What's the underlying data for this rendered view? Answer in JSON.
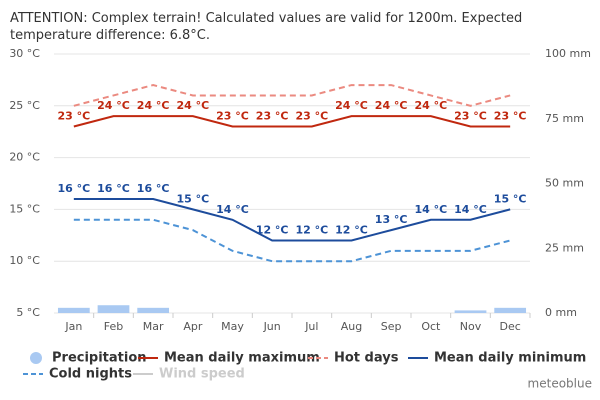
{
  "chart_data": {
    "type": "combo",
    "title": "ATTENTION: Complex terrain! Calculated values are valid for 1200m. Expected temperature difference: 6.8°C.",
    "credit": "meteoblue",
    "categories": [
      "Jan",
      "Feb",
      "Mar",
      "Apr",
      "May",
      "Jun",
      "Jul",
      "Aug",
      "Sep",
      "Oct",
      "Nov",
      "Dec"
    ],
    "ylim": [
      5,
      30
    ],
    "yticks": [
      {
        "value": 5,
        "label": "5 °C"
      },
      {
        "value": 10,
        "label": "10 °C"
      },
      {
        "value": 15,
        "label": "15 °C"
      },
      {
        "value": 20,
        "label": "20 °C"
      },
      {
        "value": 25,
        "label": "25 °C"
      },
      {
        "value": 30,
        "label": "30 °C"
      }
    ],
    "y2lim": [
      0,
      100
    ],
    "y2ticks": [
      {
        "value": 0,
        "label": "0 mm"
      },
      {
        "value": 25,
        "label": "25 mm"
      },
      {
        "value": 50,
        "label": "50 mm"
      },
      {
        "value": 75,
        "label": "75 mm"
      },
      {
        "value": 100,
        "label": "100 mm"
      }
    ],
    "grid": true,
    "series": [
      {
        "name": "Precipitation",
        "type": "bar",
        "axis": "y2",
        "color": "#a9c9f2",
        "values": [
          2,
          3,
          2,
          0,
          0,
          0,
          0,
          0,
          0,
          0,
          1,
          2
        ]
      },
      {
        "name": "Mean daily maximum",
        "type": "line",
        "color": "#c0280f",
        "values": [
          23,
          24,
          24,
          24,
          23,
          23,
          23,
          24,
          24,
          24,
          23,
          23
        ],
        "value_labels": [
          "23 °C",
          "24 °C",
          "24 °C",
          "24 °C",
          "23 °C",
          "23 °C",
          "23 °C",
          "24 °C",
          "24 °C",
          "24 °C",
          "23 °C",
          "23 °C"
        ]
      },
      {
        "name": "Hot days",
        "type": "line",
        "dashed": true,
        "color": "#eb8a80",
        "values": [
          25,
          26,
          27,
          26,
          26,
          26,
          26,
          27,
          27,
          26,
          25,
          26
        ]
      },
      {
        "name": "Mean daily minimum",
        "type": "line",
        "color": "#1d4c9c",
        "values": [
          16,
          16,
          16,
          15,
          14,
          12,
          12,
          12,
          13,
          14,
          14,
          15
        ],
        "value_labels": [
          "16 °C",
          "16 °C",
          "16 °C",
          "15 °C",
          "14 °C",
          "12 °C",
          "12 °C",
          "12 °C",
          "13 °C",
          "14 °C",
          "14 °C",
          "15 °C"
        ]
      },
      {
        "name": "Cold nights",
        "type": "line",
        "dashed": true,
        "color": "#4d93d6",
        "values": [
          14,
          14,
          14,
          13,
          11,
          10,
          10,
          10,
          11,
          11,
          11,
          12
        ]
      },
      {
        "name": "Wind speed",
        "type": "line",
        "hidden": true,
        "color": "#cccccc",
        "values": [
          null,
          null,
          null,
          null,
          null,
          null,
          null,
          null,
          null,
          null,
          null,
          null
        ]
      }
    ]
  }
}
